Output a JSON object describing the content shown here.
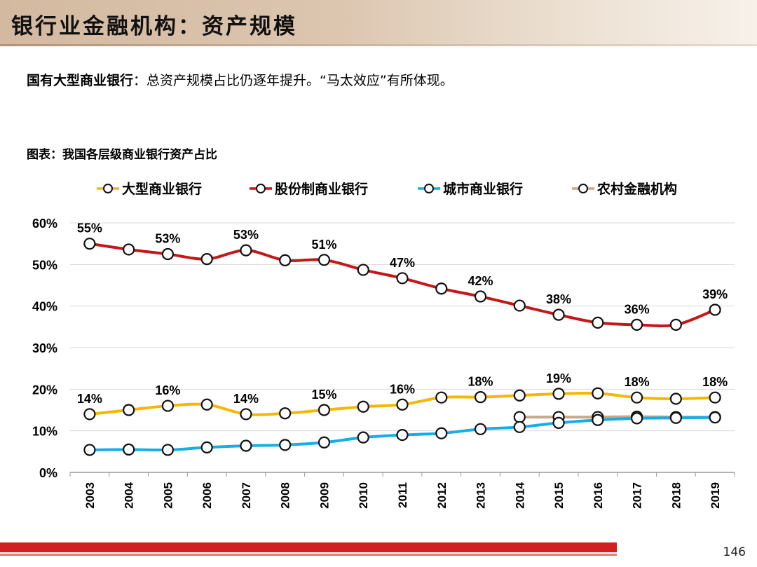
{
  "title": "银行业金融机构：资产规模",
  "headline": {
    "bold": "国有大型商业银行",
    "text": "：总资产规模占比仍逐年提升。“马太效应”有所体现。"
  },
  "chart_caption": "图表：我国各层级商业银行资产占比",
  "page_number": "146",
  "chart_data": {
    "type": "line",
    "title": "我国各层级商业银行资产占比",
    "xlabel": "",
    "ylabel": "",
    "ylim": [
      0,
      60
    ],
    "yticks": [
      "0%",
      "10%",
      "20%",
      "30%",
      "40%",
      "50%",
      "60%"
    ],
    "grid": true,
    "legend_position": "top",
    "x": [
      "2003",
      "2004",
      "2005",
      "2006",
      "2007",
      "2008",
      "2009",
      "2010",
      "2011",
      "2012",
      "2013",
      "2014",
      "2015",
      "2016",
      "2017",
      "2018",
      "2019"
    ],
    "series": [
      {
        "name": "大型商业银行",
        "color": "#f5b800",
        "values": [
          14,
          15,
          16,
          16.3,
          14,
          14.2,
          15,
          15.8,
          16.3,
          18,
          18.1,
          18.5,
          18.9,
          19,
          18,
          17.7,
          18
        ],
        "labels": [
          "14%",
          "",
          "16%",
          "",
          "14%",
          "",
          "15%",
          "",
          "16%",
          "",
          "18%",
          "",
          "19%",
          "",
          "18%",
          "",
          "18%"
        ]
      },
      {
        "name": "股份制商业银行",
        "color": "#c41717",
        "values": [
          55,
          53.6,
          52.5,
          51.3,
          53.4,
          51,
          51.1,
          48.7,
          46.7,
          44.2,
          42.3,
          40.1,
          37.9,
          36,
          35.5,
          35.5,
          39.1
        ],
        "labels": [
          "55%",
          "",
          "53%",
          "",
          "53%",
          "",
          "51%",
          "",
          "47%",
          "",
          "42%",
          "",
          "38%",
          "",
          "36%",
          "",
          "39%"
        ]
      },
      {
        "name": "城市商业银行",
        "color": "#16aee6",
        "values": [
          5.4,
          5.5,
          5.4,
          6,
          6.4,
          6.6,
          7.2,
          8.4,
          9,
          9.4,
          10.4,
          10.9,
          11.9,
          12.6,
          13,
          13.1,
          13.2
        ],
        "labels": [
          "",
          "",
          "",
          "",
          "",
          "",
          "",
          "",
          "",
          "",
          "",
          "",
          "",
          "",
          "",
          "",
          ""
        ]
      },
      {
        "name": "农村金融机构",
        "color": "#c8a98a",
        "values": [
          null,
          null,
          null,
          null,
          null,
          null,
          null,
          null,
          null,
          null,
          null,
          13.3,
          13.3,
          13.3,
          13.4,
          13.3,
          13.3
        ],
        "labels": [
          "",
          "",
          "",
          "",
          "",
          "",
          "",
          "",
          "",
          "",
          "",
          "",
          "",
          "",
          "",
          "",
          ""
        ]
      }
    ]
  }
}
